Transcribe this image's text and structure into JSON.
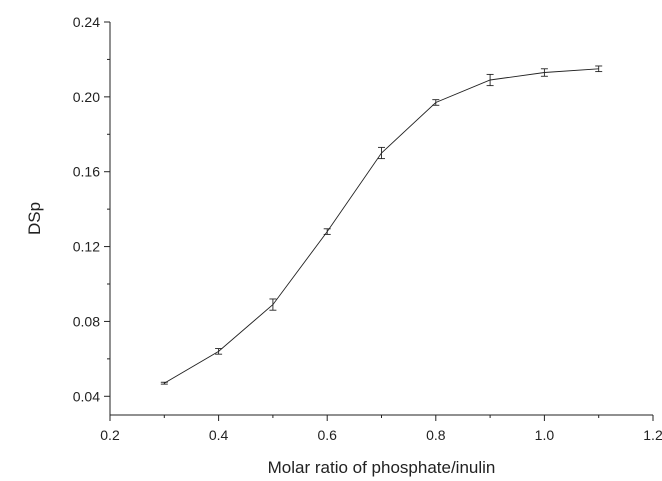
{
  "chart_data": {
    "type": "line",
    "title": "",
    "xlabel": "Molar ratio of phosphate/inulin",
    "ylabel": "DSp",
    "xlim": [
      0.2,
      1.2
    ],
    "ylim": [
      0.03,
      0.24
    ],
    "x_ticks": [
      0.2,
      0.4,
      0.6,
      0.8,
      1.0,
      1.2
    ],
    "x_tick_labels": [
      "0.2",
      "0.4",
      "0.6",
      "0.8",
      "1.0",
      "1.2"
    ],
    "y_ticks": [
      0.04,
      0.08,
      0.12,
      0.16,
      0.2,
      0.24
    ],
    "y_tick_labels": [
      "0.04",
      "0.08",
      "0.12",
      "0.16",
      "0.20",
      "0.24"
    ],
    "grid": false,
    "legend": "none",
    "line_color": "#222222",
    "series": [
      {
        "x": [
          0.3,
          0.4,
          0.5,
          0.6,
          0.7,
          0.8,
          0.9,
          1.0,
          1.1
        ],
        "y": [
          0.047,
          0.064,
          0.089,
          0.128,
          0.17,
          0.197,
          0.209,
          0.213,
          0.215
        ],
        "error": [
          0.0005,
          0.0015,
          0.003,
          0.0015,
          0.003,
          0.0015,
          0.003,
          0.002,
          0.0015
        ]
      }
    ]
  }
}
